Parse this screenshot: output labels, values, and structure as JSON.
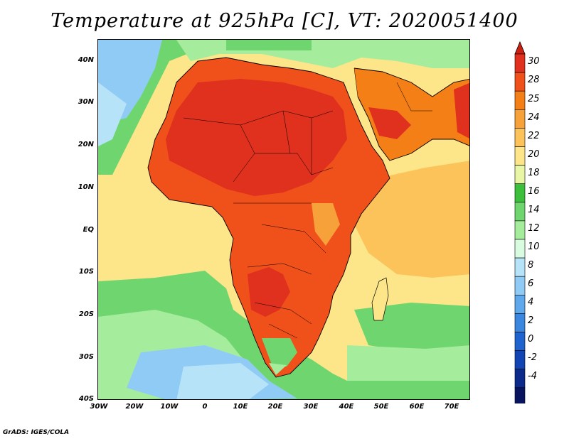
{
  "title": "Temperature at 925hPa [C], VT: 2020051400",
  "credit": "GrADS: IGES/COLA",
  "axes": {
    "lat_labels": [
      "40N",
      "30N",
      "20N",
      "10N",
      "EQ",
      "10S",
      "20S",
      "30S",
      "40S"
    ],
    "lon_labels": [
      "30W",
      "20W",
      "10W",
      "0",
      "10E",
      "20E",
      "30E",
      "40E",
      "50E",
      "60E",
      "70E"
    ]
  },
  "colorbar": {
    "labels": [
      "30",
      "28",
      "25",
      "24",
      "22",
      "20",
      "18",
      "16",
      "14",
      "12",
      "10",
      "8",
      "6",
      "4",
      "2",
      "0",
      "-2",
      "-4"
    ],
    "colors": [
      "#e0301e",
      "#f0501a",
      "#f57f17",
      "#f7a13b",
      "#fbc35a",
      "#fde68a",
      "#e8f6a6",
      "#3cc03c",
      "#6fd66f",
      "#a6ec9d",
      "#d9fbe0",
      "#b7e3f8",
      "#8fcbf4",
      "#60a8ec",
      "#3b87e0",
      "#1f63cf",
      "#1244b4",
      "#0b2a8a",
      "#08155e"
    ],
    "top_arrow_color": "#cc2010",
    "bottom_arrow_color": "#d6d3f7"
  },
  "palette": {
    "sea_green": "#6fd66f",
    "sea_light_green": "#a6ec9d",
    "sea_blue": "#8fcbf4",
    "sea_yellow": "#fde68a",
    "sea_orange_light": "#fbc35a",
    "land_orange": "#f7a13b",
    "land_red_orange": "#f0501a",
    "land_red": "#e0301e"
  }
}
